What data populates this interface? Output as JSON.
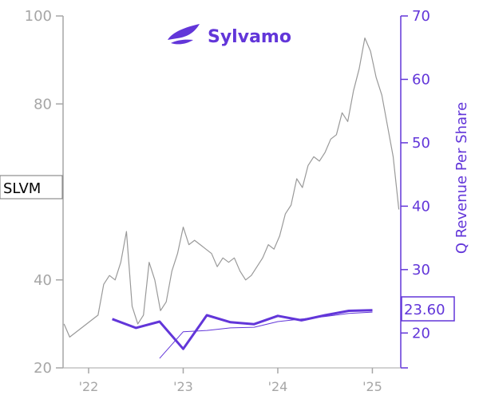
{
  "brand": {
    "name": "Sylvamo",
    "ticker": "SLVM",
    "color": "#6236d9"
  },
  "chart_data": {
    "type": "line",
    "title": "",
    "x_tick_labels": [
      "'22",
      "'23",
      "'24",
      "'25"
    ],
    "x_tick_values": [
      2022.0,
      2023.0,
      2024.0,
      2025.0
    ],
    "xlim": [
      2021.73,
      2025.3
    ],
    "left_axis": {
      "label": "",
      "ylim": [
        20,
        100
      ],
      "ticks": [
        20,
        40,
        80,
        100
      ],
      "color": "#a6a6a6"
    },
    "right_axis": {
      "label": "Q Revenue Per Share",
      "ylim": [
        14.5,
        70
      ],
      "ticks": [
        20,
        30,
        40,
        50,
        60,
        70
      ],
      "color": "#6236d9"
    },
    "last_value_label": "23.60",
    "series": [
      {
        "axis": "left",
        "color": "#999999",
        "x": [
          2021.74,
          2021.8,
          2021.86,
          2021.92,
          2021.98,
          2022.04,
          2022.1,
          2022.16,
          2022.22,
          2022.28,
          2022.34,
          2022.4,
          2022.46,
          2022.52,
          2022.58,
          2022.64,
          2022.7,
          2022.76,
          2022.82,
          2022.88,
          2022.94,
          2023.0,
          2023.06,
          2023.12,
          2023.18,
          2023.24,
          2023.3,
          2023.36,
          2023.42,
          2023.48,
          2023.54,
          2023.6,
          2023.66,
          2023.72,
          2023.78,
          2023.84,
          2023.9,
          2023.96,
          2024.02,
          2024.08,
          2024.14,
          2024.2,
          2024.26,
          2024.32,
          2024.38,
          2024.44,
          2024.5,
          2024.56,
          2024.62,
          2024.68,
          2024.74,
          2024.8,
          2024.86,
          2024.92,
          2024.98,
          2025.04,
          2025.1,
          2025.16,
          2025.22,
          2025.28
        ],
        "values": [
          30,
          27,
          28,
          29,
          30,
          31,
          32,
          39,
          41,
          40,
          44,
          51,
          34,
          30,
          32,
          44,
          40,
          33,
          35,
          42,
          46,
          52,
          48,
          49,
          48,
          47,
          46,
          43,
          45,
          44,
          45,
          42,
          40,
          41,
          43,
          45,
          48,
          47,
          50,
          55,
          57,
          63,
          61,
          66,
          68,
          67,
          69,
          72,
          73,
          78,
          76,
          83,
          88,
          95,
          92,
          86,
          82,
          75,
          68,
          56
        ]
      },
      {
        "name": "",
        "axis": "right",
        "color": "#6236d9",
        "width": 3,
        "x": [
          2022.25,
          2022.5,
          2022.75,
          2023.0,
          2023.25,
          2023.5,
          2023.75,
          2024.0,
          2024.25,
          2024.5,
          2024.75,
          2025.0
        ],
        "values": [
          22.2,
          20.8,
          21.8,
          17.5,
          22.8,
          21.7,
          21.4,
          22.7,
          22.0,
          22.8,
          23.5,
          23.6
        ]
      },
      {
        "name": "",
        "axis": "right",
        "color": "#6236d9",
        "width": 1,
        "x": [
          2022.75,
          2023.0,
          2023.25,
          2023.5,
          2023.75,
          2024.0,
          2024.25,
          2024.5,
          2024.75,
          2025.0
        ],
        "values": [
          16.0,
          20.2,
          20.4,
          20.8,
          20.9,
          21.8,
          22.2,
          22.6,
          23.1,
          23.3
        ]
      }
    ]
  }
}
